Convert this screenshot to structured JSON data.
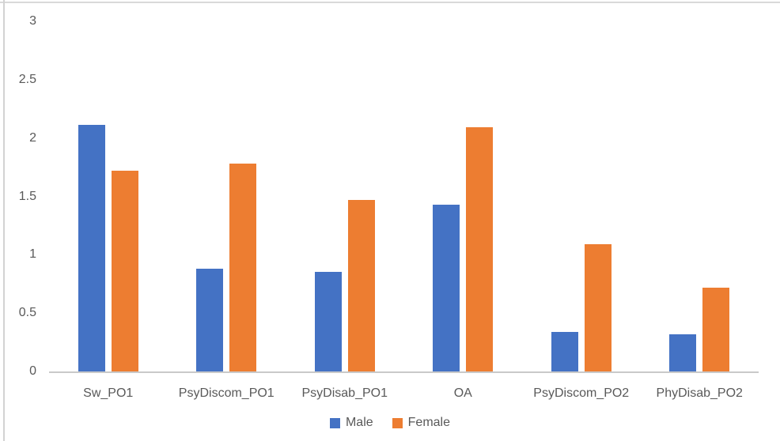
{
  "chart_data": {
    "type": "bar",
    "title": "",
    "xlabel": "",
    "ylabel": "",
    "categories": [
      "Sw_PO1",
      "PsyDiscom_PO1",
      "PsyDisab_PO1",
      "OA",
      "PsyDiscom_PO2",
      "PhyDisab_PO2"
    ],
    "series": [
      {
        "name": "Male",
        "color": "#4472C4",
        "values": [
          2.11,
          0.88,
          0.85,
          1.43,
          0.34,
          0.32
        ]
      },
      {
        "name": "Female",
        "color": "#ED7D31",
        "values": [
          1.72,
          1.78,
          1.47,
          2.09,
          1.09,
          0.72
        ]
      }
    ],
    "ylim": [
      0,
      3
    ],
    "ytick_interval": 0.5,
    "ytick_labels": [
      "0",
      "0.5",
      "1",
      "1.5",
      "2",
      "2.5",
      "3"
    ],
    "grid": false,
    "legend_position": "bottom"
  },
  "colors": {
    "male_bar": "#4472C4",
    "female_bar": "#ED7D31",
    "axis_text": "#595959",
    "axis_line": "#C9C9C9",
    "frame_border": "#D9D9D9",
    "background": "#FFFFFF"
  }
}
